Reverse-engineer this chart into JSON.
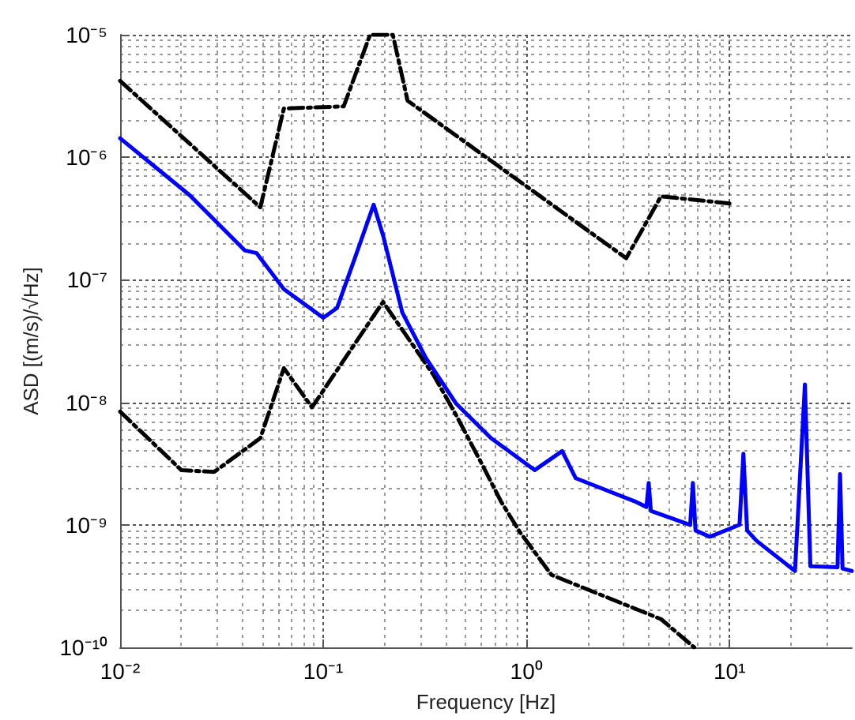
{
  "chart_data": {
    "type": "line",
    "xlabel": "Frequency [Hz]",
    "ylabel": "ASD [(m/s)/√Hz]",
    "log": "xy",
    "grid": true,
    "marker": "none",
    "xlim": [
      0.01,
      40
    ],
    "xticks": [
      {
        "value": 0.01,
        "label": "10⁻²"
      },
      {
        "value": 0.1,
        "label": "10⁻¹"
      },
      {
        "value": 1,
        "label": "10⁰"
      },
      {
        "value": 10,
        "label": "10¹"
      }
    ],
    "ylim": [
      1e-10,
      1e-05
    ],
    "yticks": [
      {
        "value": 1e-10,
        "label": "10⁻¹⁰"
      },
      {
        "value": 1e-09,
        "label": "10⁻⁹"
      },
      {
        "value": 1e-08,
        "label": "10⁻⁸"
      },
      {
        "value": 1e-07,
        "label": "10⁻⁷"
      },
      {
        "value": 1e-06,
        "label": "10⁻⁶"
      },
      {
        "value": 1e-05,
        "label": "10⁻⁵"
      }
    ],
    "series": [
      {
        "color": "#000000",
        "line_style": "dashed",
        "x": [
          0.01,
          0.049,
          0.064,
          0.126,
          0.17,
          0.22,
          0.26,
          3.1,
          4.6,
          10
        ],
        "values": [
          4.2e-06,
          3.9e-07,
          2.5e-06,
          2.6e-06,
          1e-05,
          1e-05,
          2.9e-06,
          1.5e-07,
          4.8e-07,
          4.2e-07
        ]
      },
      {
        "color": "#000000",
        "line_style": "dashed",
        "x": [
          0.01,
          0.02,
          0.029,
          0.049,
          0.064,
          0.088,
          0.197,
          0.35,
          0.45,
          0.6,
          0.75,
          0.93,
          1.33,
          4.6,
          6.7
        ],
        "values": [
          8.4e-09,
          2.8e-09,
          2.7e-09,
          5.1e-09,
          1.9e-08,
          9.1e-09,
          6.6e-08,
          1.66e-08,
          7.9e-09,
          3.2e-09,
          1.55e-09,
          8.7e-10,
          3.9e-10,
          1.7e-10,
          1e-10
        ]
      },
      {
        "color": "#0000ff",
        "line_style": "solid",
        "x": [
          0.01,
          0.022,
          0.041,
          0.047,
          0.064,
          0.1,
          0.117,
          0.143,
          0.177,
          0.197,
          0.245,
          0.32,
          0.45,
          0.67,
          1.1,
          1.5,
          1.75,
          3.4,
          3.9,
          4.0,
          4.1,
          6.4,
          6.6,
          6.8,
          8.0,
          11.2,
          11.7,
          12.2,
          13.6,
          21,
          23.5,
          25,
          34,
          35,
          36,
          40
        ],
        "values": [
          1.43e-06,
          4.9e-07,
          1.74e-07,
          1.65e-07,
          8.4e-08,
          4.9e-08,
          5.9e-08,
          1.5e-07,
          4.1e-07,
          2.3e-07,
          5.4e-08,
          2.3e-08,
          9.8e-09,
          5.1e-09,
          2.8e-09,
          4e-09,
          2.4e-09,
          1.56e-09,
          1.4e-09,
          2.2e-09,
          1.3e-09,
          1e-09,
          2.2e-09,
          9e-10,
          8e-10,
          1e-09,
          3.8e-09,
          9e-10,
          7.4e-10,
          4.2e-10,
          1.4e-08,
          4.6e-10,
          4.5e-10,
          2.6e-09,
          4.4e-10,
          4.2e-10
        ]
      }
    ]
  }
}
